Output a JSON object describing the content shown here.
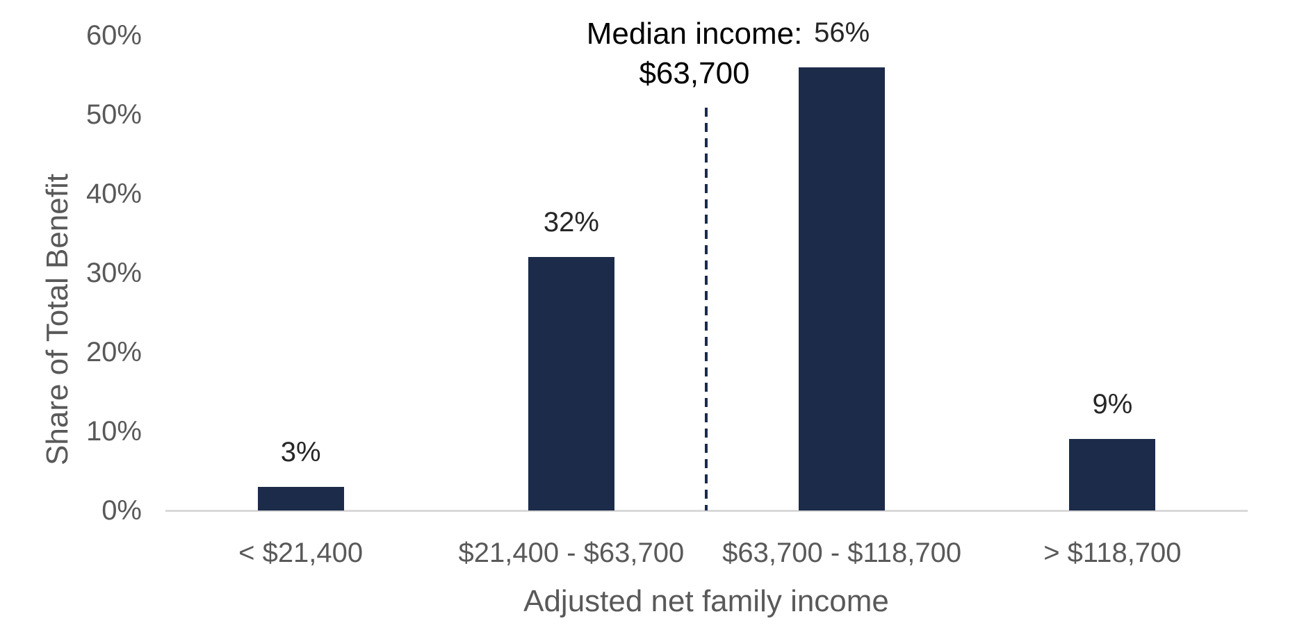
{
  "chart_data": {
    "type": "bar",
    "categories": [
      "< $21,400",
      "$21,400 - $63,700",
      "$63,700 - $118,700",
      "> $118,700"
    ],
    "values": [
      3,
      32,
      56,
      9
    ],
    "value_labels": [
      "3%",
      "32%",
      "56%",
      "9%"
    ],
    "xlabel": "Adjusted net family income",
    "ylabel": "Share of Total Benefit",
    "ylim": [
      0,
      60
    ],
    "yticks": [
      0,
      10,
      20,
      30,
      40,
      50,
      60
    ],
    "ytick_labels": [
      "0%",
      "10%",
      "20%",
      "30%",
      "40%",
      "50%",
      "60%"
    ],
    "grid": false,
    "legend": "none",
    "annotation": {
      "line1": "Median income:",
      "line2": "$63,700",
      "position": "boundary between 2nd and 3rd category"
    },
    "colors": {
      "bar": "#1C2B4A",
      "median_line": "#1C2B4A",
      "axis_line": "#D9D9D9",
      "axis_text": "#595959",
      "data_label_text": "#262626",
      "annotation_text": "#000000"
    }
  }
}
